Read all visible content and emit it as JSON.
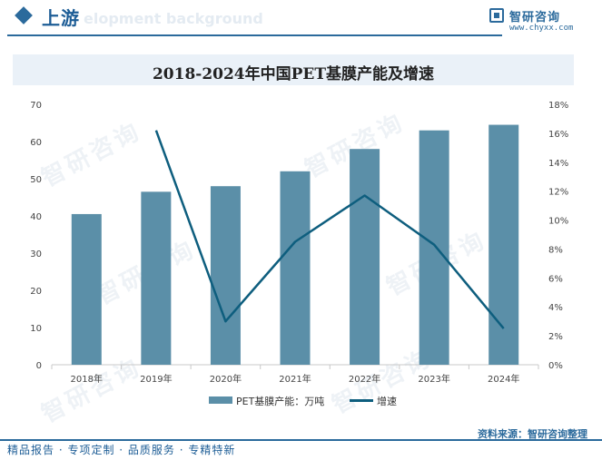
{
  "header": {
    "section_title": "上游",
    "section_subtitle": "elopment background",
    "brand_name": "智研咨询",
    "brand_url": "www.chyxx.com"
  },
  "watermark_text": "智研咨询",
  "chart_data": {
    "type": "bar",
    "title": "2018-2024年中国PET基膜产能及增速",
    "categories": [
      "2018年",
      "2019年",
      "2020年",
      "2021年",
      "2022年",
      "2023年",
      "2024年"
    ],
    "series": [
      {
        "name": "PET基膜产能：万吨",
        "type": "bar",
        "axis": "left",
        "values": [
          40.5,
          46.5,
          48.0,
          52.0,
          58.0,
          63.0,
          64.5
        ]
      },
      {
        "name": "增速",
        "type": "line",
        "axis": "right",
        "values": [
          null,
          16.2,
          3.0,
          8.5,
          11.7,
          8.3,
          2.5
        ]
      }
    ],
    "y_left": {
      "min": 0,
      "max": 70,
      "ticks": [
        "0",
        "10",
        "20",
        "30",
        "40",
        "50",
        "60",
        "70"
      ]
    },
    "y_right": {
      "min": 0,
      "max": 18,
      "ticks": [
        "0%",
        "2%",
        "4%",
        "6%",
        "8%",
        "10%",
        "12%",
        "14%",
        "16%",
        "18%"
      ]
    },
    "colors": {
      "bar": "#5b8fa8",
      "line": "#0e5e7e"
    },
    "legend_position": "bottom"
  },
  "source": "资料来源：智研咨询整理",
  "footer": "精品报告 · 专项定制 · 品质服务 · 专精特新"
}
